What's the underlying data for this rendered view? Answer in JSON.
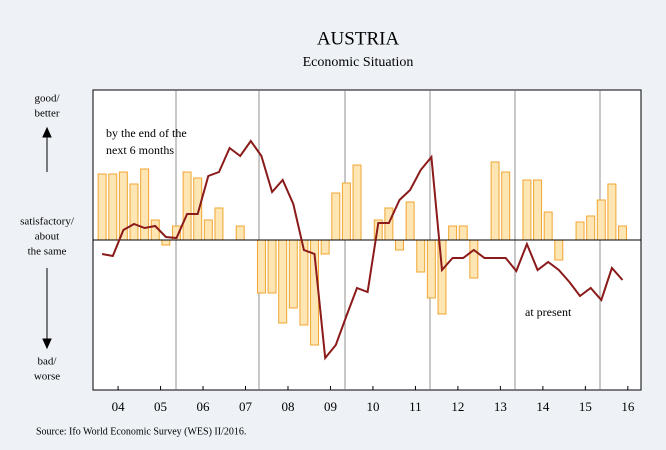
{
  "chart_data": {
    "type": "bar-line",
    "title": "AUSTRIA",
    "subtitle": "Economic Situation",
    "source": "Source: Ifo World Economic Survey (WES) II/2016.",
    "y_labels": {
      "top": [
        "good/",
        "better"
      ],
      "middle": [
        "satisfactory/",
        "about",
        "the same"
      ],
      "bottom": [
        "bad/",
        "worse"
      ]
    },
    "annotations": [
      [
        "by the end of the",
        "next 6 months"
      ],
      [
        "at present"
      ]
    ],
    "x": [
      2004.125,
      2004.375,
      2004.625,
      2004.875,
      2005.125,
      2005.375,
      2005.625,
      2005.875,
      2006.125,
      2006.375,
      2006.625,
      2006.875,
      2007.125,
      2007.375,
      2007.625,
      2007.875,
      2008.125,
      2008.375,
      2008.625,
      2008.875,
      2009.125,
      2009.375,
      2009.625,
      2009.875,
      2010.125,
      2010.375,
      2010.625,
      2010.875,
      2011.125,
      2011.375,
      2011.625,
      2011.875,
      2012.125,
      2012.375,
      2012.625,
      2012.875,
      2013.125,
      2013.375,
      2013.625,
      2013.875,
      2014.125,
      2014.375,
      2014.625,
      2014.875,
      2015.125,
      2015.375,
      2015.625,
      2015.875,
      2016.125,
      2016.375
    ],
    "series": [
      {
        "kind": "bar",
        "color": "#fde6b4",
        "stroke": "#f0a631",
        "values": [
          66,
          66,
          68,
          56,
          71,
          20,
          -5,
          14,
          68,
          62,
          20,
          32,
          0,
          14,
          0,
          -53,
          -53,
          -83,
          -68,
          -85,
          -105,
          -14,
          47,
          57,
          75,
          0,
          20,
          32,
          -10,
          38,
          -32,
          -58,
          -74,
          14,
          14,
          -38,
          0,
          78,
          68,
          0,
          60,
          60,
          28,
          -20,
          0,
          18,
          24,
          40,
          56,
          14
        ]
      },
      {
        "kind": "line",
        "color": "#8b1a1a",
        "values": [
          -14,
          -16,
          10,
          16,
          12,
          14,
          3,
          2,
          26,
          26,
          64,
          68,
          92,
          84,
          99,
          84,
          48,
          60,
          36,
          -10,
          -14,
          -118,
          -105,
          -76,
          -48,
          -52,
          17,
          17,
          40,
          50,
          70,
          83,
          -30,
          -18,
          -18,
          -10,
          -18,
          -18,
          -18,
          -31,
          -4,
          -30,
          -22,
          -30,
          -42,
          -56,
          -48,
          -60,
          -28,
          -40
        ]
      }
    ],
    "xlim": [
      2003.91,
      2016.81
    ],
    "xticks": [
      {
        "value": 2004.5,
        "label": "04"
      },
      {
        "value": 2005.5,
        "label": "05"
      },
      {
        "value": 2006.5,
        "label": "06"
      },
      {
        "value": 2007.5,
        "label": "07"
      },
      {
        "value": 2008.5,
        "label": "08"
      },
      {
        "value": 2009.5,
        "label": "09"
      },
      {
        "value": 2010.5,
        "label": "10"
      },
      {
        "value": 2011.5,
        "label": "11"
      },
      {
        "value": 2012.5,
        "label": "12"
      },
      {
        "value": 2013.5,
        "label": "13"
      },
      {
        "value": 2014.5,
        "label": "14"
      },
      {
        "value": 2015.5,
        "label": "15"
      },
      {
        "value": 2016.5,
        "label": "16"
      }
    ],
    "ylim": [
      -150,
      150
    ]
  }
}
